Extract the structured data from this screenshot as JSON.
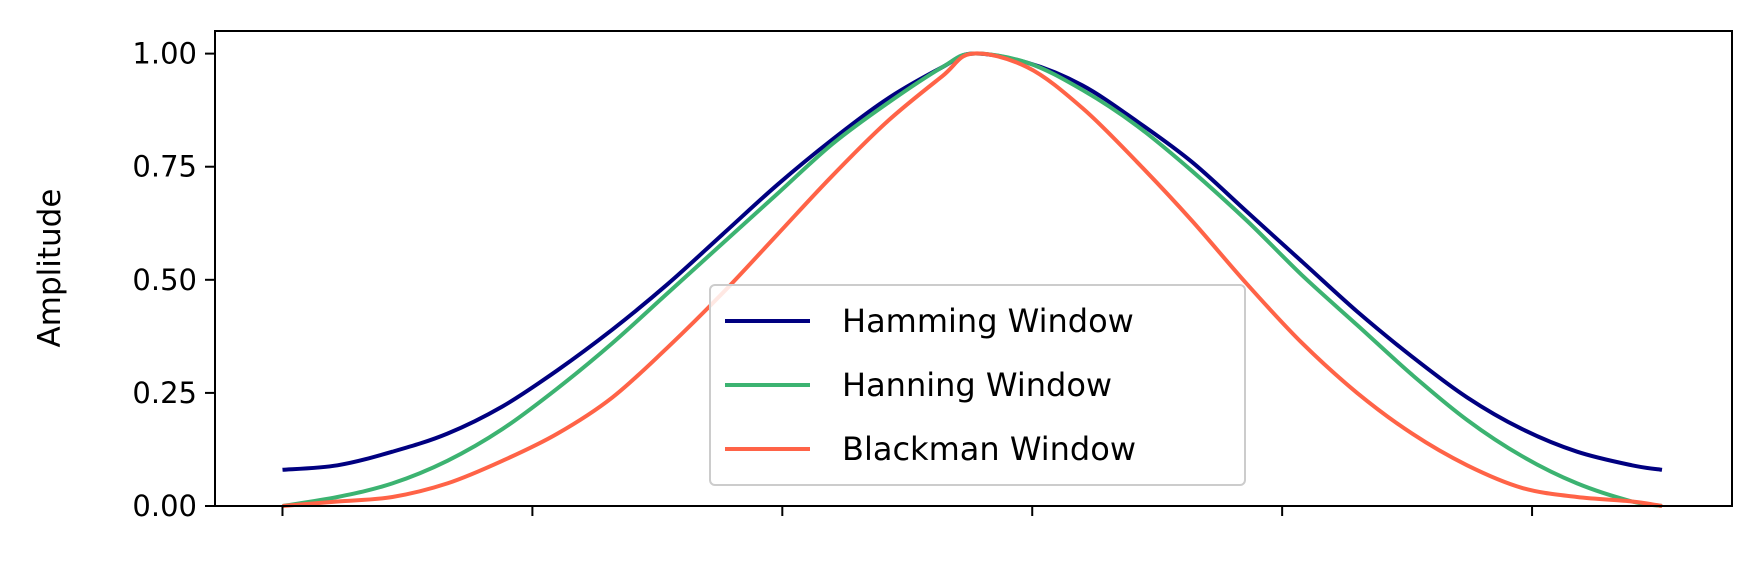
{
  "chart_data": {
    "type": "line",
    "title": "",
    "xlabel": "",
    "ylabel": "Amplitude",
    "xlim": [
      -27,
      580
    ],
    "ylim": [
      0.0,
      1.05
    ],
    "x_ticks": [
      0,
      100,
      200,
      300,
      400,
      500
    ],
    "x_tick_labels_visible": false,
    "y_ticks": [
      0.0,
      0.25,
      0.5,
      0.75,
      1.0
    ],
    "y_tick_labels": [
      "0.00",
      "0.25",
      "0.50",
      "0.75",
      "1.00"
    ],
    "grid": false,
    "legend_position": "lower center",
    "x": [
      0,
      22,
      44,
      66,
      88,
      110,
      132,
      154,
      176,
      198,
      220,
      242,
      264,
      276,
      298,
      320,
      342,
      364,
      386,
      408,
      430,
      452,
      474,
      496,
      518,
      540,
      552
    ],
    "series": [
      {
        "name": "Hamming Window",
        "color": "#000080",
        "values": [
          0.08,
          0.09,
          0.12,
          0.16,
          0.22,
          0.3,
          0.39,
          0.49,
          0.6,
          0.71,
          0.81,
          0.9,
          0.97,
          1.0,
          0.98,
          0.93,
          0.85,
          0.76,
          0.65,
          0.54,
          0.43,
          0.33,
          0.24,
          0.17,
          0.12,
          0.09,
          0.08
        ]
      },
      {
        "name": "Hanning Window",
        "color": "#3cb371",
        "values": [
          0.0,
          0.02,
          0.05,
          0.1,
          0.17,
          0.26,
          0.36,
          0.47,
          0.58,
          0.69,
          0.8,
          0.89,
          0.97,
          1.0,
          0.98,
          0.92,
          0.84,
          0.74,
          0.63,
          0.51,
          0.4,
          0.29,
          0.19,
          0.11,
          0.05,
          0.01,
          0.0
        ]
      },
      {
        "name": "Blackman Window",
        "color": "#ff6347",
        "values": [
          0.0,
          0.01,
          0.02,
          0.05,
          0.1,
          0.16,
          0.24,
          0.35,
          0.47,
          0.6,
          0.73,
          0.85,
          0.95,
          1.0,
          0.97,
          0.88,
          0.76,
          0.63,
          0.49,
          0.36,
          0.25,
          0.16,
          0.09,
          0.04,
          0.02,
          0.01,
          0.0
        ]
      }
    ]
  }
}
